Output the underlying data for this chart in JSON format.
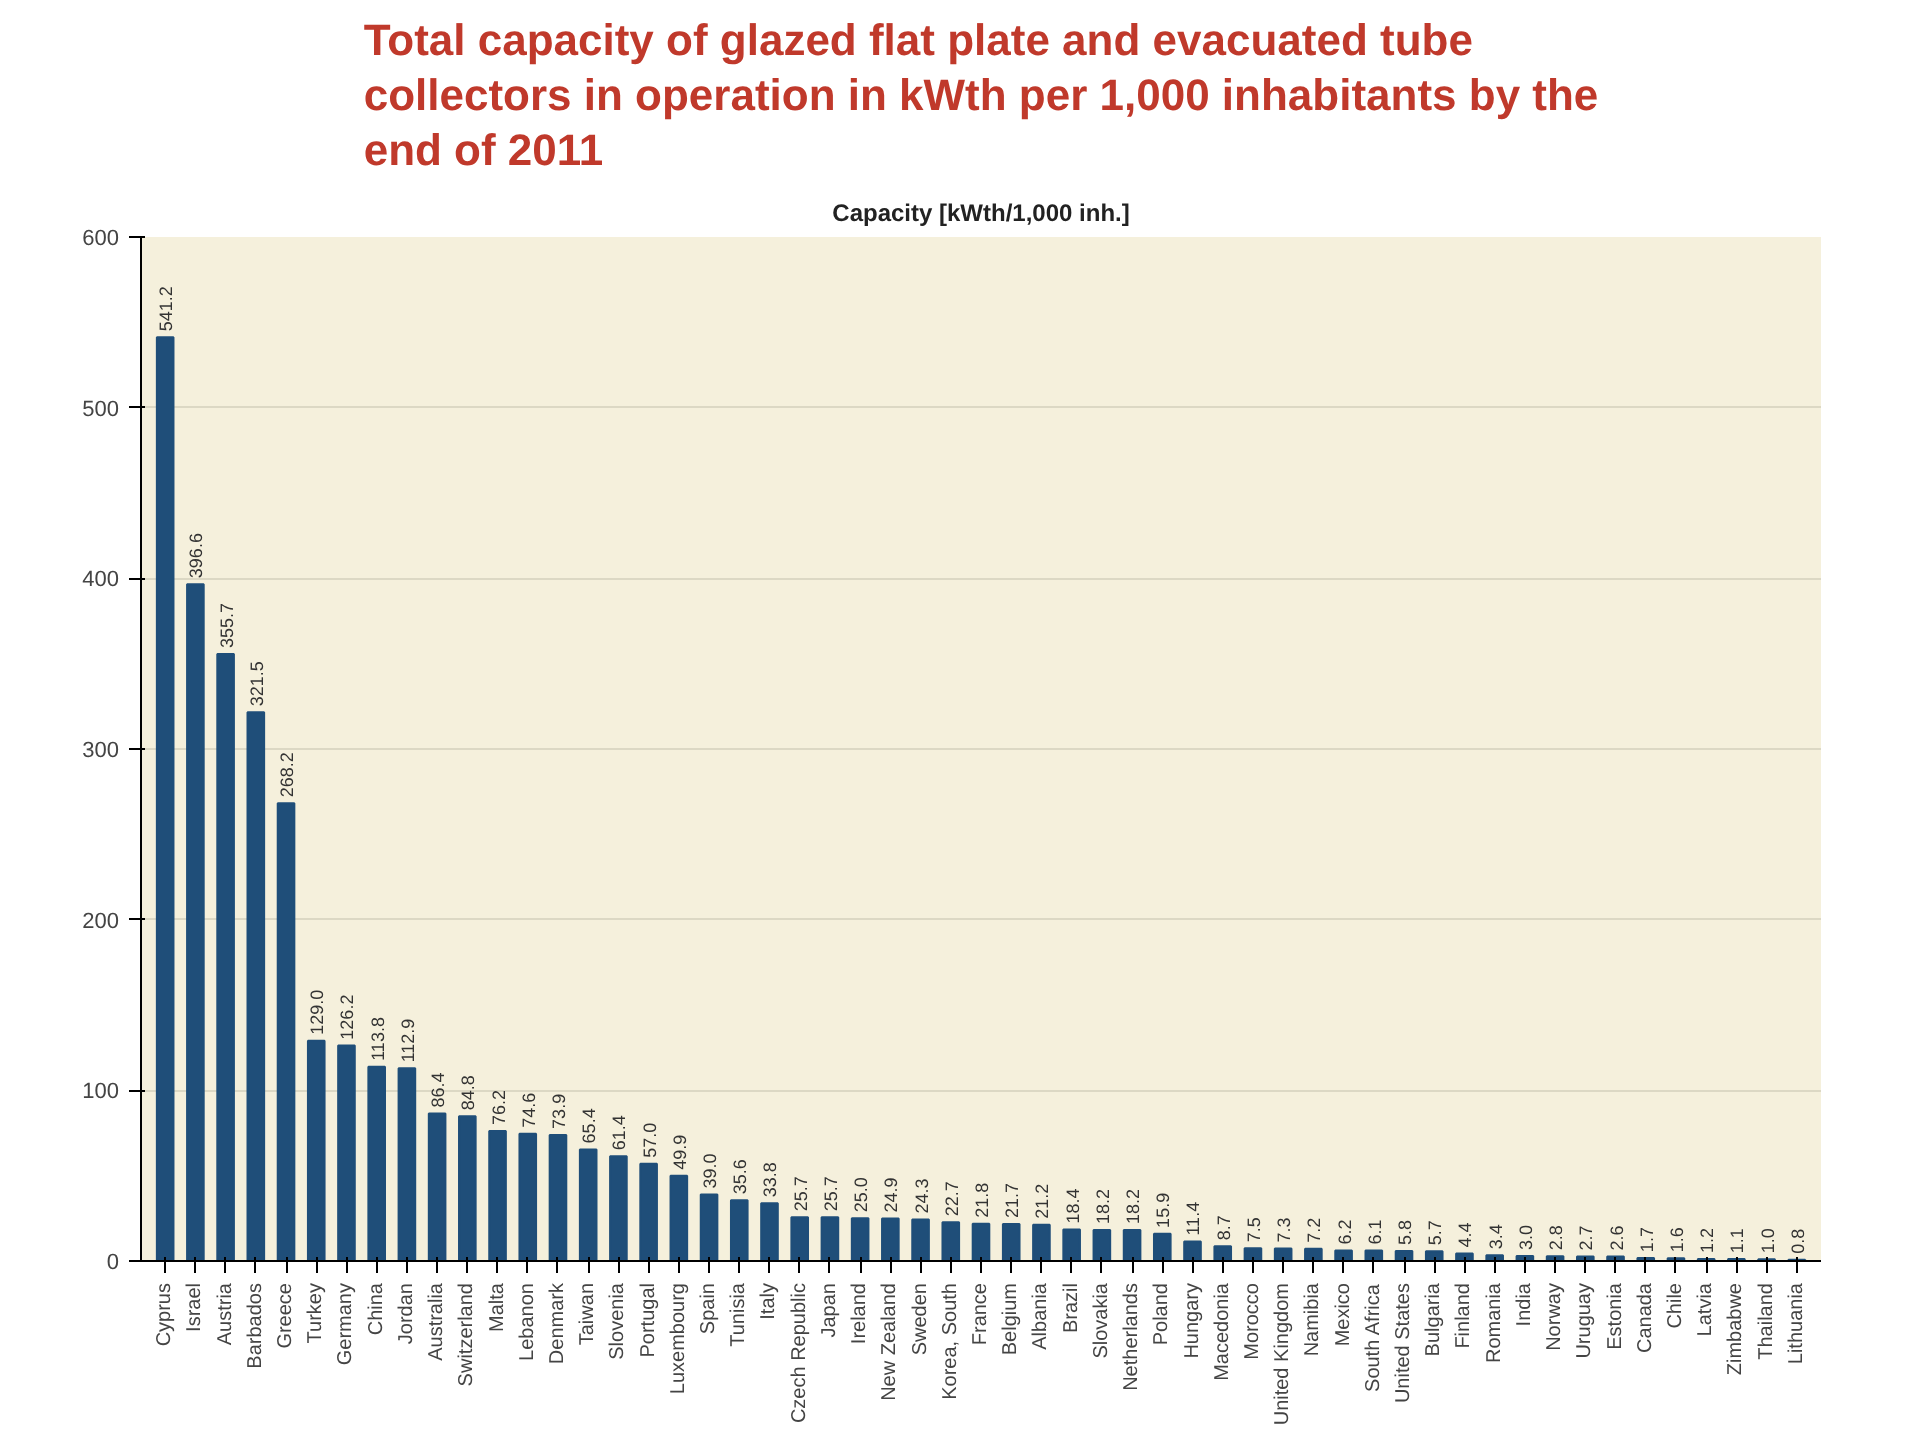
{
  "chart_data": {
    "type": "bar",
    "title": "Total capacity of glazed flat plate and evacuated tube collectors in operation in kWth per 1,000 inhabitants by the end of 2011",
    "subtitle": "Capacity [kWth/1,000 inh.]",
    "categories": [
      "Cyprus",
      "Israel",
      "Austria",
      "Barbados",
      "Greece",
      "Turkey",
      "Germany",
      "China",
      "Jordan",
      "Australia",
      "Switzerland",
      "Malta",
      "Lebanon",
      "Denmark",
      "Taiwan",
      "Slovenia",
      "Portugal",
      "Luxembourg",
      "Spain",
      "Tunisia",
      "Italy",
      "Czech Republic",
      "Japan",
      "Ireland",
      "New Zealand",
      "Sweden",
      "Korea, South",
      "France",
      "Belgium",
      "Albania",
      "Brazil",
      "Slovakia",
      "Netherlands",
      "Poland",
      "Hungary",
      "Macedonia",
      "Morocco",
      "United Kingdom",
      "Namibia",
      "Mexico",
      "South Africa",
      "United States",
      "Bulgaria",
      "Finland",
      "Romania",
      "India",
      "Norway",
      "Uruguay",
      "Estonia",
      "Canada",
      "Chile",
      "Latvia",
      "Zimbabwe",
      "Thailand",
      "Lithuania"
    ],
    "values": [
      541.2,
      396.6,
      355.7,
      321.5,
      268.2,
      129.0,
      126.2,
      113.8,
      112.9,
      86.4,
      84.8,
      76.2,
      74.6,
      73.9,
      65.4,
      61.4,
      57.0,
      49.9,
      39.0,
      35.6,
      33.8,
      25.7,
      25.7,
      25.0,
      24.9,
      24.3,
      22.7,
      21.8,
      21.7,
      21.2,
      18.4,
      18.2,
      18.2,
      15.9,
      11.4,
      8.7,
      7.5,
      7.3,
      7.2,
      6.2,
      6.1,
      5.8,
      5.7,
      4.4,
      3.4,
      3.0,
      2.8,
      2.7,
      2.6,
      1.7,
      1.6,
      1.2,
      1.1,
      1.0,
      0.8
    ],
    "value_labels": [
      "541.2",
      "396.6",
      "355.7",
      "321.5",
      "268.2",
      "129.0",
      "126.2",
      "113.8",
      "112.9",
      "86.4",
      "84.8",
      "76.2",
      "74.6",
      "73.9",
      "65.4",
      "61.4",
      "57.0",
      "49.9",
      "39.0",
      "35.6",
      "33.8",
      "25.7",
      "25.7",
      "25.0",
      "24.9",
      "24.3",
      "22.7",
      "21.8",
      "21.7",
      "21.2",
      "18.4",
      "18.2",
      "18.2",
      "15.9",
      "11.4",
      "8.7",
      "7.5",
      "7.3",
      "7.2",
      "6.2",
      "6.1",
      "5.8",
      "5.7",
      "4.4",
      "3.4",
      "3.0",
      "2.8",
      "2.7",
      "2.6",
      "1.7",
      "1.6",
      "1.2",
      "1.1",
      "1.0",
      "0.8"
    ],
    "color": "#1f4e79",
    "ylim": [
      0,
      600
    ],
    "yticks": [
      0,
      100,
      200,
      300,
      400,
      500,
      600
    ],
    "grid": "y"
  }
}
